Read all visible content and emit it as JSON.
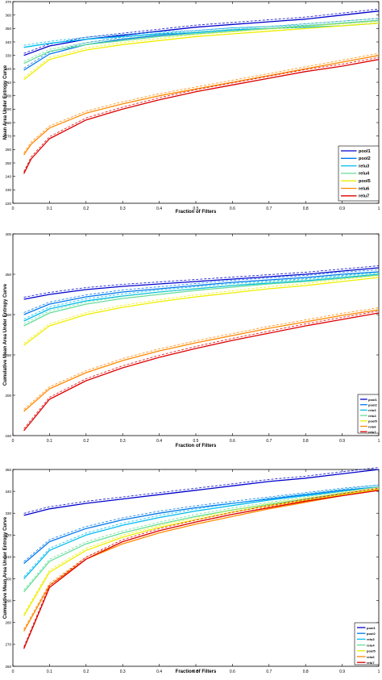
{
  "chart_data": [
    {
      "type": "line",
      "title": "",
      "xlabel": "Fraction of Filters",
      "ylabel": "Mean Area Under Entropy Curve",
      "xlim": [
        0,
        1
      ],
      "ylim": [
        220,
        370
      ],
      "xticks": [
        0,
        0.1,
        0.2,
        0.3,
        0.4,
        0.5,
        0.6,
        0.7,
        0.8,
        0.9,
        1
      ],
      "xtick_labels": [
        "0",
        "0.1",
        "0.2",
        "0.3",
        "0.4",
        "0.5",
        "0.6",
        "0.7",
        "0.8",
        "0.9",
        "1"
      ],
      "yticks": [
        220,
        230,
        240,
        250,
        260,
        270,
        280,
        290,
        300,
        310,
        320,
        330,
        340,
        350,
        360,
        370
      ],
      "ytick_labels": [
        "220",
        "230",
        "240",
        "250",
        "260",
        "270",
        "280",
        "290",
        "300",
        "310",
        "320",
        "330",
        "340",
        "350",
        "360",
        "370"
      ],
      "grid": false,
      "legend": "bottom-right",
      "series": [
        {
          "name": "pool1",
          "color": "#0000cc",
          "x": [
            0.03,
            0.1,
            0.2,
            0.3,
            0.4,
            0.5,
            0.6,
            0.7,
            0.8,
            0.9,
            1.0
          ],
          "y": [
            330,
            337,
            342,
            345,
            348,
            351,
            353,
            355,
            357,
            360,
            363
          ]
        },
        {
          "name": "pool2",
          "color": "#0077ee",
          "x": [
            0.03,
            0.1,
            0.2,
            0.3,
            0.4,
            0.5,
            0.6,
            0.7,
            0.8,
            0.9,
            1.0
          ],
          "y": [
            319,
            331,
            338,
            342,
            345,
            347,
            349,
            350,
            352,
            354,
            356
          ]
        },
        {
          "name": "relu3",
          "color": "#00bbee",
          "x": [
            0.03,
            0.1,
            0.2,
            0.3,
            0.4,
            0.5,
            0.6,
            0.7,
            0.8,
            0.9,
            1.0
          ],
          "y": [
            336,
            339,
            342,
            344,
            346,
            347,
            349,
            350,
            351,
            352,
            354
          ]
        },
        {
          "name": "relu4",
          "color": "#66dd99",
          "x": [
            0.03,
            0.1,
            0.2,
            0.3,
            0.4,
            0.5,
            0.6,
            0.7,
            0.8,
            0.9,
            1.0
          ],
          "y": [
            324,
            333,
            338,
            341,
            344,
            346,
            348,
            350,
            352,
            354,
            356
          ]
        },
        {
          "name": "pool5",
          "color": "#eeee00",
          "x": [
            0.03,
            0.1,
            0.2,
            0.3,
            0.4,
            0.5,
            0.6,
            0.7,
            0.8,
            0.9,
            1.0
          ],
          "y": [
            312,
            327,
            334,
            338,
            341,
            344,
            346,
            348,
            350,
            352,
            354
          ]
        },
        {
          "name": "relu6",
          "color": "#ff8800",
          "x": [
            0.03,
            0.05,
            0.1,
            0.2,
            0.3,
            0.4,
            0.5,
            0.6,
            0.7,
            0.8,
            0.9,
            1.0
          ],
          "y": [
            256,
            264,
            276,
            287,
            294,
            300,
            305,
            310,
            315,
            320,
            325,
            330
          ]
        },
        {
          "name": "relu7",
          "color": "#dd0000",
          "x": [
            0.03,
            0.05,
            0.1,
            0.2,
            0.3,
            0.4,
            0.5,
            0.6,
            0.7,
            0.8,
            0.9,
            1.0
          ],
          "y": [
            242,
            253,
            268,
            282,
            290,
            297,
            303,
            308,
            313,
            318,
            322,
            327
          ]
        }
      ]
    },
    {
      "type": "line",
      "title": "",
      "xlabel": "Fraction of Filters",
      "ylabel": "Cumulative Mean Area Under Entropy Curve",
      "xlim": [
        0,
        1
      ],
      "ylim": [
        150,
        400
      ],
      "xticks": [
        0,
        0.1,
        0.2,
        0.3,
        0.4,
        0.5,
        0.6,
        0.7,
        0.8,
        0.9,
        1
      ],
      "xtick_labels": [
        "0",
        "0.1",
        "0.2",
        "0.3",
        "0.4",
        "0.5",
        "0.6",
        "0.7",
        "0.8",
        "0.9",
        "1"
      ],
      "yticks": [
        150,
        200,
        250,
        300,
        350,
        400
      ],
      "ytick_labels": [
        "150",
        "200",
        "250",
        "300",
        "350",
        "400"
      ],
      "grid": false,
      "legend": "bottom-right",
      "series": [
        {
          "name": "pool1",
          "color": "#0000cc",
          "x": [
            0.03,
            0.1,
            0.2,
            0.3,
            0.4,
            0.5,
            0.6,
            0.7,
            0.8,
            0.9,
            1.0
          ],
          "y": [
            319,
            325,
            331,
            335,
            338,
            341,
            344,
            347,
            350,
            354,
            358
          ]
        },
        {
          "name": "pool2",
          "color": "#0077ee",
          "x": [
            0.03,
            0.1,
            0.2,
            0.3,
            0.4,
            0.5,
            0.6,
            0.7,
            0.8,
            0.9,
            1.0
          ],
          "y": [
            300,
            313,
            322,
            328,
            332,
            336,
            340,
            343,
            346,
            350,
            353
          ]
        },
        {
          "name": "relu3",
          "color": "#00bbee",
          "x": [
            0.03,
            0.1,
            0.2,
            0.3,
            0.4,
            0.5,
            0.6,
            0.7,
            0.8,
            0.9,
            1.0
          ],
          "y": [
            292,
            307,
            317,
            323,
            328,
            332,
            336,
            339,
            342,
            346,
            350
          ]
        },
        {
          "name": "relu4",
          "color": "#66dd99",
          "x": [
            0.03,
            0.1,
            0.2,
            0.3,
            0.4,
            0.5,
            0.6,
            0.7,
            0.8,
            0.9,
            1.0
          ],
          "y": [
            286,
            302,
            313,
            320,
            325,
            330,
            334,
            338,
            341,
            345,
            349
          ]
        },
        {
          "name": "pool5",
          "color": "#eeee00",
          "x": [
            0.03,
            0.1,
            0.2,
            0.3,
            0.4,
            0.5,
            0.6,
            0.7,
            0.8,
            0.9,
            1.0
          ],
          "y": [
            262,
            286,
            300,
            309,
            316,
            322,
            327,
            332,
            336,
            341,
            346
          ]
        },
        {
          "name": "relu6",
          "color": "#ff8800",
          "x": [
            0.03,
            0.1,
            0.2,
            0.3,
            0.4,
            0.5,
            0.6,
            0.7,
            0.8,
            0.9,
            1.0
          ],
          "y": [
            180,
            208,
            228,
            243,
            255,
            265,
            274,
            283,
            291,
            299,
            306
          ]
        },
        {
          "name": "relu7",
          "color": "#dd0000",
          "x": [
            0.03,
            0.1,
            0.2,
            0.3,
            0.4,
            0.5,
            0.6,
            0.7,
            0.8,
            0.9,
            1.0
          ],
          "y": [
            156,
            195,
            218,
            234,
            247,
            258,
            268,
            277,
            286,
            294,
            302
          ]
        }
      ]
    },
    {
      "type": "line",
      "title": "",
      "xlabel": "Fraction of Filters",
      "ylabel": "Cumulative Mean Area Under Entropy Curve",
      "xlim": [
        0,
        1
      ],
      "ylim": [
        260,
        350
      ],
      "xticks": [
        0,
        0.1,
        0.2,
        0.3,
        0.4,
        0.5,
        0.6,
        0.7,
        0.8,
        0.9,
        1
      ],
      "xtick_labels": [
        "0",
        "0.1",
        "0.2",
        "0.3",
        "0.4",
        "0.5",
        "0.6",
        "0.7",
        "0.8",
        "0.9",
        "1"
      ],
      "yticks": [
        260,
        270,
        280,
        290,
        300,
        310,
        320,
        330,
        340,
        350
      ],
      "ytick_labels": [
        "260",
        "270",
        "280",
        "290",
        "300",
        "310",
        "320",
        "330",
        "340",
        "350"
      ],
      "grid": false,
      "legend": "bottom-right",
      "series": [
        {
          "name": "pool1",
          "color": "#0000cc",
          "x": [
            0.03,
            0.1,
            0.2,
            0.3,
            0.4,
            0.5,
            0.6,
            0.7,
            0.8,
            0.9,
            1.0
          ],
          "y": [
            329,
            332,
            334.5,
            336.5,
            338.5,
            340.5,
            342.5,
            344.5,
            346,
            348,
            350
          ]
        },
        {
          "name": "pool2",
          "color": "#0077ee",
          "x": [
            0.03,
            0.1,
            0.2,
            0.3,
            0.4,
            0.5,
            0.6,
            0.7,
            0.8,
            0.9,
            1.0
          ],
          "y": [
            307,
            317,
            323,
            327,
            330,
            332.5,
            334.5,
            336.5,
            338.5,
            340.5,
            342
          ]
        },
        {
          "name": "relu3",
          "color": "#00bbee",
          "x": [
            0.03,
            0.1,
            0.2,
            0.3,
            0.4,
            0.5,
            0.6,
            0.7,
            0.8,
            0.9,
            1.0
          ],
          "y": [
            300,
            313,
            320,
            324.5,
            328,
            331,
            333.5,
            336,
            338,
            340,
            342
          ]
        },
        {
          "name": "relu4",
          "color": "#66dd99",
          "x": [
            0.03,
            0.1,
            0.2,
            0.3,
            0.4,
            0.5,
            0.6,
            0.7,
            0.8,
            0.9,
            1.0
          ],
          "y": [
            294,
            308,
            316,
            321,
            325,
            328.5,
            331.5,
            334,
            336.5,
            339,
            341
          ]
        },
        {
          "name": "pool5",
          "color": "#eeee00",
          "x": [
            0.03,
            0.1,
            0.2,
            0.3,
            0.4,
            0.5,
            0.6,
            0.7,
            0.8,
            0.9,
            1.0
          ],
          "y": [
            283,
            303,
            313,
            319,
            323.5,
            327,
            330.5,
            333.5,
            336,
            338.5,
            341
          ]
        },
        {
          "name": "relu6",
          "color": "#ff8800",
          "x": [
            0.03,
            0.1,
            0.2,
            0.3,
            0.4,
            0.5,
            0.6,
            0.7,
            0.8,
            0.9,
            1.0
          ],
          "y": [
            276,
            297,
            309,
            316,
            321,
            325,
            328.5,
            332,
            335,
            338,
            340.5
          ]
        },
        {
          "name": "relu7",
          "color": "#dd0000",
          "x": [
            0.03,
            0.1,
            0.2,
            0.3,
            0.4,
            0.5,
            0.6,
            0.7,
            0.8,
            0.9,
            1.0
          ],
          "y": [
            268,
            296,
            309,
            317,
            322,
            326,
            329.5,
            332.5,
            335.5,
            338,
            340.5
          ]
        }
      ]
    }
  ]
}
